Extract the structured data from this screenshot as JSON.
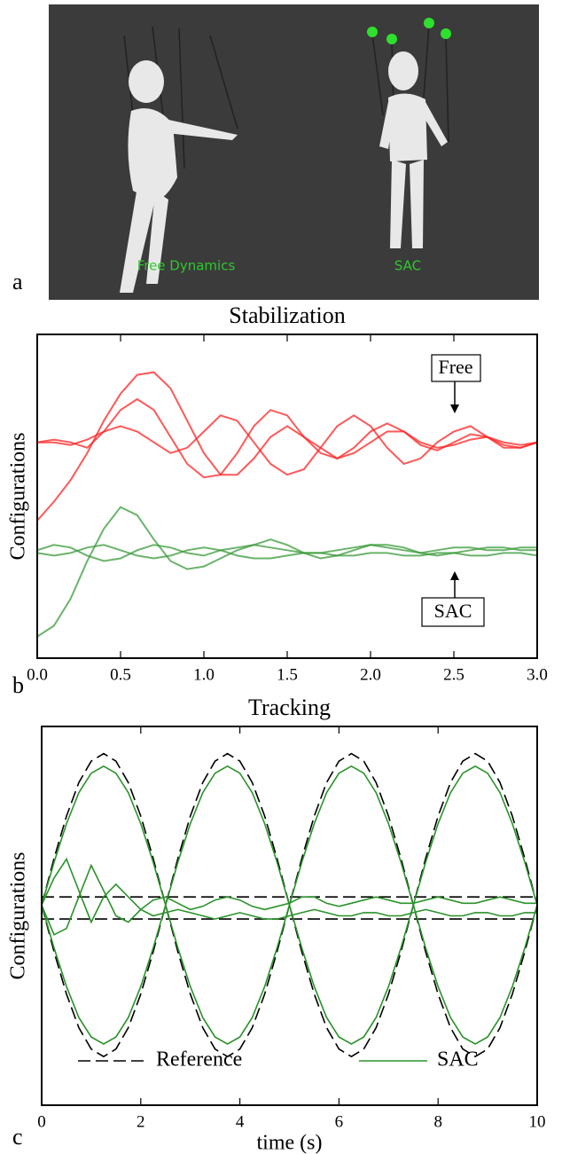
{
  "figure": {
    "panels": [
      "a",
      "b",
      "c"
    ],
    "scene": {
      "labels": [
        "Free Dynamics",
        "SAC"
      ]
    }
  },
  "chart_data": [
    {
      "type": "line",
      "title": "Stabilization",
      "y_label": "Configurations",
      "annotations": [
        "Free",
        "SAC"
      ],
      "x": [
        0,
        0.1,
        0.2,
        0.3,
        0.4,
        0.5,
        0.6,
        0.7,
        0.8,
        0.9,
        1.0,
        1.1,
        1.2,
        1.3,
        1.4,
        1.5,
        1.6,
        1.7,
        1.8,
        1.9,
        2.0,
        2.1,
        2.2,
        2.3,
        2.4,
        2.5,
        2.6,
        2.7,
        2.8,
        2.9,
        3.0
      ],
      "xlim": [
        0,
        3
      ],
      "ylim": [
        -3,
        3
      ],
      "xticks": [
        {
          "value": 0,
          "label": "0.0"
        },
        {
          "value": 0.5,
          "label": "0.5"
        },
        {
          "value": 1,
          "label": "1.0"
        },
        {
          "value": 1.5,
          "label": "1.5"
        },
        {
          "value": 2,
          "label": "2.0"
        },
        {
          "value": 2.5,
          "label": "2.5"
        },
        {
          "value": 3,
          "label": "3.0"
        }
      ],
      "series": [
        {
          "color": "#ff2020",
          "values": [
            -0.45,
            -0.1,
            0.3,
            0.8,
            1.4,
            1.9,
            2.25,
            2.3,
            2.0,
            1.4,
            0.8,
            0.4,
            0.4,
            0.7,
            1.1,
            1.3,
            1.1,
            0.9,
            0.7,
            0.8,
            1.0,
            1.2,
            1.2,
            1.0,
            0.9,
            0.95,
            1.05,
            1.1,
            1.0,
            0.95,
            1.0
          ]
        },
        {
          "color": "#ff2020",
          "values": [
            1.0,
            1.05,
            1.0,
            0.9,
            1.2,
            1.6,
            1.8,
            1.6,
            1.1,
            0.6,
            0.35,
            0.4,
            0.8,
            1.3,
            1.6,
            1.5,
            1.1,
            0.8,
            0.7,
            0.9,
            1.2,
            1.35,
            1.2,
            0.95,
            0.85,
            1.0,
            1.15,
            1.1,
            0.95,
            0.9,
            1.0
          ]
        },
        {
          "color": "#ff2020",
          "values": [
            1.0,
            1.0,
            0.95,
            1.05,
            1.2,
            1.3,
            1.2,
            1.0,
            0.8,
            0.9,
            1.2,
            1.5,
            1.4,
            1.0,
            0.6,
            0.4,
            0.5,
            0.9,
            1.3,
            1.5,
            1.3,
            0.9,
            0.6,
            0.7,
            1.0,
            1.2,
            1.3,
            1.1,
            0.9,
            0.9,
            1.0
          ]
        },
        {
          "color": "#3a9a3a",
          "values": [
            -2.6,
            -2.4,
            -1.9,
            -1.2,
            -0.6,
            -0.2,
            -0.35,
            -0.8,
            -1.2,
            -1.35,
            -1.3,
            -1.15,
            -1.0,
            -0.9,
            -0.8,
            -0.9,
            -1.05,
            -1.15,
            -1.1,
            -1.0,
            -0.9,
            -0.9,
            -0.95,
            -1.05,
            -1.1,
            -1.05,
            -1.0,
            -0.95,
            -0.95,
            -1.0,
            -1.0
          ]
        },
        {
          "color": "#3a9a3a",
          "values": [
            -1.0,
            -0.9,
            -0.95,
            -1.1,
            -1.2,
            -1.15,
            -1.0,
            -0.9,
            -0.95,
            -1.05,
            -1.1,
            -1.0,
            -0.95,
            -0.9,
            -0.95,
            -1.0,
            -1.05,
            -1.05,
            -1.0,
            -0.95,
            -0.9,
            -0.95,
            -1.0,
            -1.05,
            -1.0,
            -0.95,
            -0.95,
            -1.0,
            -1.0,
            -0.95,
            -0.95
          ]
        },
        {
          "color": "#3a9a3a",
          "values": [
            -1.05,
            -1.1,
            -1.05,
            -0.95,
            -0.9,
            -1.0,
            -1.1,
            -1.15,
            -1.1,
            -1.0,
            -0.95,
            -1.0,
            -1.1,
            -1.15,
            -1.15,
            -1.1,
            -1.05,
            -1.05,
            -1.1,
            -1.1,
            -1.05,
            -1.05,
            -1.1,
            -1.1,
            -1.05,
            -1.05,
            -1.1,
            -1.1,
            -1.05,
            -1.05,
            -1.1
          ]
        }
      ]
    },
    {
      "type": "line",
      "title": "Tracking",
      "x_label": "time (s)",
      "y_label": "Configurations",
      "x": [
        0,
        0.25,
        0.5,
        0.75,
        1,
        1.25,
        1.5,
        1.75,
        2,
        2.25,
        2.5,
        2.75,
        3,
        3.25,
        3.5,
        3.75,
        4,
        4.25,
        4.5,
        4.75,
        5,
        5.25,
        5.5,
        5.75,
        6,
        6.25,
        6.5,
        6.75,
        7,
        7.25,
        7.5,
        7.75,
        8,
        8.25,
        8.5,
        8.75,
        9,
        9.25,
        9.5,
        9.75,
        10
      ],
      "xlim": [
        0,
        10
      ],
      "ylim": [
        -3,
        3
      ],
      "xticks": [
        0,
        2,
        4,
        6,
        8,
        10
      ],
      "series": [
        {
          "name": "Reference",
          "color": "#000000",
          "linestyle": "dashed",
          "values": [
            0.17,
            0.91,
            1.58,
            2.11,
            2.45,
            2.57,
            2.45,
            2.11,
            1.58,
            0.91,
            0.17,
            -0.57,
            -1.24,
            -1.77,
            -2.11,
            -2.23,
            -2.11,
            -1.77,
            -1.24,
            -0.57,
            0.17,
            0.91,
            1.58,
            2.11,
            2.45,
            2.57,
            2.45,
            2.11,
            1.58,
            0.91,
            0.17,
            -0.57,
            -1.24,
            -1.77,
            -2.11,
            -2.23,
            -2.11,
            -1.77,
            -1.24,
            -0.57,
            0.17
          ]
        },
        {
          "name": "Reference",
          "color": "#000000",
          "linestyle": "dashed",
          "values": [
            0.17,
            -0.57,
            -1.24,
            -1.77,
            -2.11,
            -2.23,
            -2.11,
            -1.77,
            -1.24,
            -0.57,
            0.17,
            0.91,
            1.58,
            2.11,
            2.45,
            2.57,
            2.45,
            2.11,
            1.58,
            0.91,
            0.17,
            -0.57,
            -1.24,
            -1.77,
            -2.11,
            -2.23,
            -2.11,
            -1.77,
            -1.24,
            -0.57,
            0.17,
            0.91,
            1.58,
            2.11,
            2.45,
            2.57,
            2.45,
            2.11,
            1.58,
            0.91,
            0.17
          ]
        },
        {
          "name": "Reference",
          "color": "#000000",
          "linestyle": "dashed",
          "values": [
            0.3,
            0.3,
            0.3,
            0.3,
            0.3,
            0.3,
            0.3,
            0.3,
            0.3,
            0.3,
            0.3,
            0.3,
            0.3,
            0.3,
            0.3,
            0.3,
            0.3,
            0.3,
            0.3,
            0.3,
            0.3,
            0.3,
            0.3,
            0.3,
            0.3,
            0.3,
            0.3,
            0.3,
            0.3,
            0.3,
            0.3,
            0.3,
            0.3,
            0.3,
            0.3,
            0.3,
            0.3,
            0.3,
            0.3,
            0.3,
            0.3
          ]
        },
        {
          "name": "Reference",
          "color": "#000000",
          "linestyle": "dashed",
          "values": [
            -0.05,
            -0.05,
            -0.05,
            -0.05,
            -0.05,
            -0.05,
            -0.05,
            -0.05,
            -0.05,
            -0.05,
            -0.05,
            -0.05,
            -0.05,
            -0.05,
            -0.05,
            -0.05,
            -0.05,
            -0.05,
            -0.05,
            -0.05,
            -0.05,
            -0.05,
            -0.05,
            -0.05,
            -0.05,
            -0.05,
            -0.05,
            -0.05,
            -0.05,
            -0.05,
            -0.05,
            -0.05,
            -0.05,
            -0.05,
            -0.05,
            -0.05,
            -0.05,
            -0.05,
            -0.05,
            -0.05,
            -0.05
          ]
        },
        {
          "name": "SAC",
          "color": "#2a922a",
          "linestyle": "solid",
          "values": [
            0.17,
            0.85,
            1.46,
            1.95,
            2.26,
            2.37,
            2.26,
            1.95,
            1.46,
            0.85,
            0.17,
            -0.51,
            -1.12,
            -1.61,
            -1.92,
            -2.03,
            -1.92,
            -1.61,
            -1.12,
            -0.51,
            0.17,
            0.85,
            1.46,
            1.95,
            2.26,
            2.37,
            2.26,
            1.95,
            1.46,
            0.85,
            0.17,
            -0.51,
            -1.12,
            -1.61,
            -1.92,
            -2.03,
            -1.92,
            -1.61,
            -1.12,
            -0.51,
            0.17
          ]
        },
        {
          "name": "SAC",
          "color": "#2a922a",
          "linestyle": "solid",
          "values": [
            0.17,
            -0.51,
            -1.12,
            -1.61,
            -1.92,
            -2.03,
            -1.92,
            -1.61,
            -1.12,
            -0.51,
            0.17,
            0.85,
            1.46,
            1.95,
            2.26,
            2.37,
            2.26,
            1.95,
            1.46,
            0.85,
            0.17,
            -0.51,
            -1.12,
            -1.61,
            -1.92,
            -2.03,
            -1.92,
            -1.61,
            -1.12,
            -0.51,
            0.17,
            0.85,
            1.46,
            1.95,
            2.26,
            2.37,
            2.26,
            1.95,
            1.46,
            0.85,
            0.17
          ]
        },
        {
          "name": "SAC",
          "color": "#2a922a",
          "linestyle": "solid",
          "values": [
            0.17,
            0.6,
            0.9,
            0.4,
            -0.1,
            0.3,
            0.5,
            0.3,
            0.1,
            0.0,
            0.05,
            0.1,
            0.05,
            0.0,
            -0.05,
            0.0,
            0.05,
            0.0,
            -0.05,
            -0.05,
            0.0,
            0.05,
            0.1,
            0.05,
            0.0,
            0.0,
            0.05,
            0.05,
            0.0,
            0.0,
            0.05,
            0.1,
            0.05,
            0.0,
            0.0,
            0.05,
            0.05,
            0.0,
            0.0,
            0.05,
            0.05
          ]
        },
        {
          "name": "SAC",
          "color": "#2a922a",
          "linestyle": "solid",
          "values": [
            0.17,
            -0.3,
            -0.2,
            0.3,
            0.8,
            0.4,
            0.0,
            -0.1,
            0.1,
            0.25,
            0.3,
            0.2,
            0.1,
            0.15,
            0.25,
            0.3,
            0.25,
            0.15,
            0.1,
            0.15,
            0.2,
            0.3,
            0.3,
            0.2,
            0.15,
            0.2,
            0.25,
            0.3,
            0.25,
            0.2,
            0.2,
            0.25,
            0.3,
            0.25,
            0.2,
            0.2,
            0.25,
            0.3,
            0.25,
            0.2,
            0.2
          ]
        }
      ]
    }
  ]
}
